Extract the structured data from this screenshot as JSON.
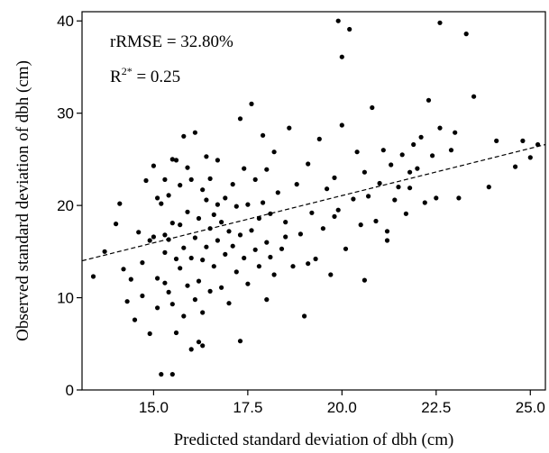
{
  "chart_data": {
    "type": "scatter",
    "title": "",
    "xlabel": "Predicted standard deviation of dbh (cm)",
    "ylabel": "Observed standard deviation of dbh (cm)",
    "xlim": [
      13.1,
      25.4
    ],
    "ylim": [
      0,
      41
    ],
    "xticks": [
      15.0,
      17.5,
      20.0,
      22.5,
      25.0
    ],
    "xtick_labels": [
      "15.0",
      "17.5",
      "20.0",
      "22.5",
      "25.0"
    ],
    "yticks": [
      0,
      10,
      20,
      30,
      40
    ],
    "ytick_labels": [
      "0",
      "10",
      "20",
      "30",
      "40"
    ],
    "grid": false,
    "annotations": {
      "rrmse": "rRMSE = 32.80%",
      "r2_base": "R",
      "r2_sup": "2*",
      "r2_value": " = 0.25"
    },
    "trendline": {
      "style": "dashed",
      "x": [
        13.1,
        25.4
      ],
      "y": [
        14.0,
        26.6
      ]
    },
    "x": [
      13.4,
      13.7,
      14.0,
      14.1,
      14.2,
      14.3,
      14.4,
      14.5,
      14.6,
      14.7,
      14.7,
      14.8,
      14.9,
      14.9,
      15.0,
      15.0,
      15.1,
      15.1,
      15.1,
      15.2,
      15.2,
      15.3,
      15.3,
      15.3,
      15.4,
      15.4,
      15.4,
      15.5,
      15.5,
      15.5,
      15.6,
      15.6,
      15.6,
      15.7,
      15.7,
      15.7,
      15.8,
      15.8,
      15.8,
      15.9,
      15.9,
      15.9,
      16.0,
      16.0,
      16.0,
      16.1,
      16.1,
      16.1,
      16.2,
      16.2,
      16.2,
      16.3,
      16.3,
      16.3,
      16.4,
      16.4,
      16.4,
      16.5,
      16.5,
      16.5,
      16.6,
      16.6,
      16.7,
      16.7,
      16.8,
      16.8,
      16.9,
      16.9,
      17.0,
      17.0,
      17.1,
      17.1,
      17.2,
      17.2,
      17.3,
      17.3,
      17.4,
      17.4,
      17.5,
      17.5,
      17.6,
      17.6,
      17.7,
      17.7,
      17.8,
      17.8,
      17.9,
      17.9,
      18.0,
      18.0,
      18.1,
      18.1,
      18.2,
      18.2,
      18.3,
      18.4,
      18.5,
      18.6,
      18.7,
      18.8,
      18.9,
      19.0,
      19.1,
      19.2,
      19.3,
      19.4,
      19.5,
      19.6,
      19.7,
      19.8,
      19.9,
      20.0,
      20.1,
      20.2,
      20.3,
      20.4,
      20.5,
      20.6,
      20.7,
      20.8,
      20.9,
      21.0,
      21.1,
      21.2,
      21.3,
      21.4,
      21.5,
      21.6,
      21.7,
      21.8,
      21.9,
      22.0,
      22.1,
      22.2,
      22.3,
      22.5,
      22.6,
      22.9,
      23.0,
      23.3,
      23.5,
      23.9,
      24.1,
      24.6,
      24.8,
      25.0,
      25.2,
      16.7,
      17.3,
      18.0,
      18.5,
      19.1,
      19.8,
      20.6,
      21.2,
      21.8,
      22.4,
      16.3,
      15.3,
      15.5,
      19.9,
      20.0,
      22.6,
      23.1
    ],
    "y": [
      12.3,
      15.0,
      18.0,
      20.2,
      13.1,
      9.6,
      12.0,
      7.6,
      17.1,
      13.8,
      10.2,
      22.7,
      16.2,
      6.1,
      24.3,
      16.6,
      20.8,
      12.1,
      8.9,
      1.7,
      20.2,
      16.8,
      11.6,
      22.8,
      21.1,
      10.6,
      16.3,
      1.7,
      18.1,
      9.3,
      14.2,
      6.2,
      24.9,
      17.9,
      13.2,
      22.2,
      15.4,
      8.0,
      27.5,
      11.3,
      24.1,
      19.3,
      4.4,
      14.3,
      22.8,
      16.5,
      9.8,
      27.9,
      5.2,
      18.6,
      11.8,
      21.7,
      14.1,
      8.4,
      20.6,
      15.5,
      25.3,
      17.5,
      10.7,
      22.9,
      13.4,
      19.0,
      16.2,
      24.9,
      11.1,
      18.2,
      14.7,
      20.8,
      17.2,
      9.4,
      15.6,
      22.3,
      19.9,
      12.8,
      16.8,
      29.4,
      14.3,
      24.0,
      20.1,
      11.5,
      17.3,
      31.0,
      15.2,
      22.8,
      18.6,
      13.4,
      20.3,
      27.6,
      16.0,
      23.9,
      14.4,
      19.1,
      25.8,
      12.5,
      21.4,
      15.3,
      18.2,
      28.4,
      13.4,
      22.3,
      16.9,
      8.0,
      24.5,
      19.2,
      14.2,
      27.2,
      17.5,
      21.8,
      12.5,
      23.0,
      19.5,
      28.7,
      15.3,
      39.1,
      20.7,
      25.8,
      17.9,
      23.6,
      21.0,
      30.6,
      18.3,
      22.4,
      26.0,
      16.2,
      24.4,
      20.6,
      22.0,
      25.5,
      19.1,
      21.9,
      26.6,
      24.0,
      27.4,
      20.3,
      31.4,
      20.8,
      28.4,
      26.0,
      27.9,
      38.6,
      31.8,
      22.0,
      27.0,
      24.2,
      27.0,
      25.2,
      26.6,
      20.1,
      5.3,
      9.8,
      16.6,
      13.7,
      18.8,
      11.9,
      17.2,
      23.6,
      25.4,
      4.8,
      14.9,
      25.0,
      40.0,
      36.1,
      39.8,
      20.8
    ]
  }
}
